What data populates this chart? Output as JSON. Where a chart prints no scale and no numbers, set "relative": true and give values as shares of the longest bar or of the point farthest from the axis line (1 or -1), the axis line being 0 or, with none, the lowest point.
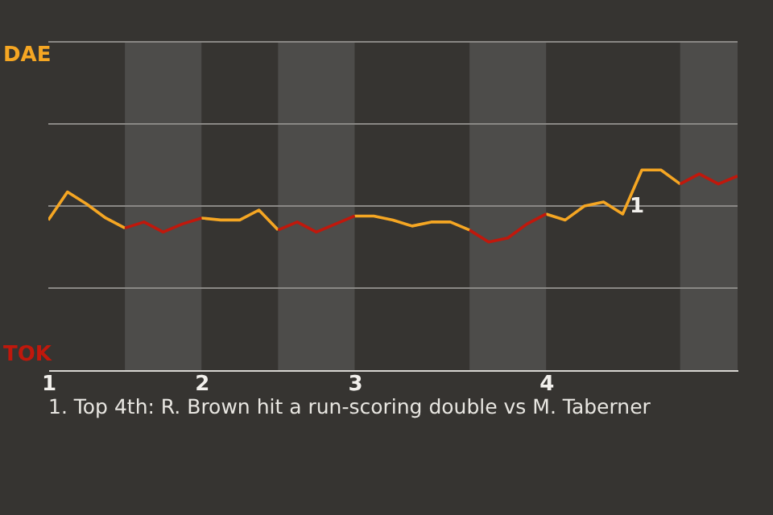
{
  "chart_data": {
    "type": "line",
    "relative": true,
    "categories": [
      "1",
      null,
      null,
      null,
      null,
      null,
      null,
      null,
      "2",
      null,
      null,
      null,
      null,
      null,
      null,
      null,
      "3",
      null,
      null,
      null,
      null,
      null,
      null,
      null,
      null,
      null,
      "4",
      null,
      null,
      null,
      null,
      null,
      null,
      null,
      null,
      null,
      null
    ],
    "series": [
      {
        "color": "#f5a623",
        "values": [
          0.75,
          0.89,
          0.83,
          0.76,
          0.71,
          null,
          null,
          null,
          0.76,
          0.75,
          0.75,
          0.8,
          0.7,
          null,
          null,
          null,
          0.77,
          0.77,
          0.75,
          0.72,
          0.74,
          0.74,
          0.7,
          null,
          null,
          null,
          0.78,
          0.75,
          0.82,
          0.84,
          0.78,
          1,
          1,
          0.93,
          null,
          null,
          null
        ]
      },
      {
        "color": "#c0180c",
        "values": [
          null,
          null,
          null,
          null,
          0.71,
          0.74,
          0.69,
          0.73,
          0.76,
          null,
          null,
          null,
          0.7,
          0.74,
          0.69,
          0.73,
          0.77,
          null,
          null,
          null,
          null,
          null,
          0.7,
          0.64,
          0.66,
          0.73,
          0.78,
          null,
          null,
          null,
          null,
          null,
          null,
          0.93,
          0.98,
          0.93,
          0.97
        ]
      }
    ],
    "ref_lines": [
      {
        "axis": "y",
        "value": 0.41,
        "color": "#8a8885"
      },
      {
        "axis": "y",
        "value": 0.82,
        "color": "#8a8885"
      },
      {
        "axis": "y",
        "value": 1.23,
        "color": "#8a8885"
      },
      {
        "axis": "y",
        "value": 1.64,
        "color": "#8a8885"
      }
    ],
    "annotations": [
      "DAE",
      "TOK",
      "1",
      "1. Top 4th: R. Brown hit a run-scoring double vs M. Taberner"
    ]
  }
}
